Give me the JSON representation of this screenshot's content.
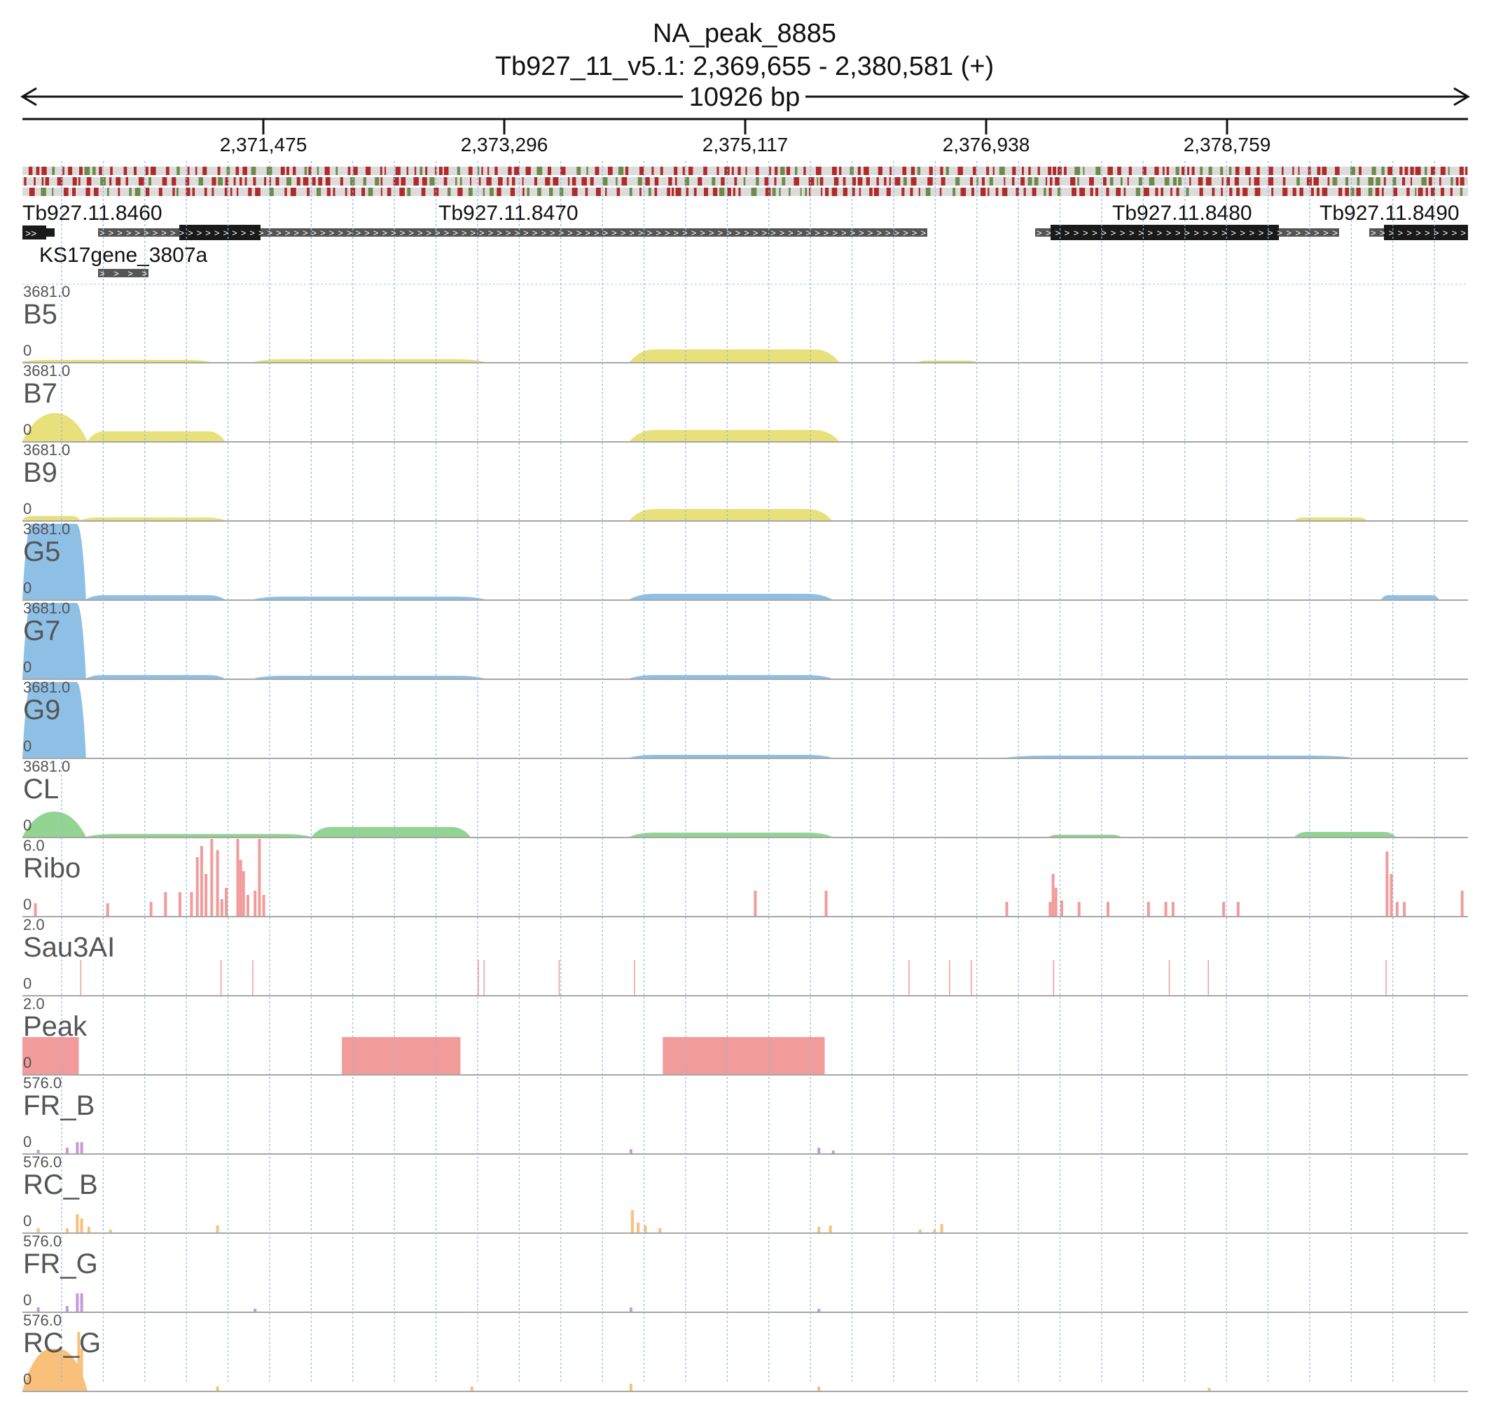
{
  "header": {
    "title": "NA_peak_8885",
    "locus": "Tb927_11_v5.1: 2,369,655 - 2,380,581 (+)",
    "span": "10926 bp"
  },
  "ruler": {
    "ticks": [
      "2,371,475",
      "2,373,296",
      "2,375,117",
      "2,376,938",
      "2,378,759"
    ]
  },
  "colors": {
    "yellow": "#e8e07a",
    "blue": "#8ec0e6",
    "green": "#93d493",
    "red": "#f29b9b",
    "purple": "#c59ad8",
    "orange": "#f8c07a",
    "grid": "#9cc4ea"
  },
  "genes": [
    {
      "label": "Tb927.11.8460"
    },
    {
      "label": "Tb927.11.8470"
    },
    {
      "label": "Tb927.11.8480"
    },
    {
      "label": "Tb927.11.8490"
    },
    {
      "label": "KS17gene_3807a"
    }
  ],
  "tracks": [
    {
      "name": "B5",
      "max": "3681.0",
      "zero": "0",
      "color": "yellow"
    },
    {
      "name": "B7",
      "max": "3681.0",
      "zero": "0",
      "color": "yellow"
    },
    {
      "name": "B9",
      "max": "3681.0",
      "zero": "0",
      "color": "yellow"
    },
    {
      "name": "G5",
      "max": "3681.0",
      "zero": "0",
      "color": "blue"
    },
    {
      "name": "G7",
      "max": "3681.0",
      "zero": "0",
      "color": "blue"
    },
    {
      "name": "G9",
      "max": "3681.0",
      "zero": "0",
      "color": "blue"
    },
    {
      "name": "CL",
      "max": "3681.0",
      "zero": "0",
      "color": "green"
    },
    {
      "name": "Ribo",
      "max": "6.0",
      "zero": "0",
      "color": "red"
    },
    {
      "name": "Sau3AI",
      "max": "2.0",
      "zero": "0",
      "color": "red"
    },
    {
      "name": "Peak",
      "max": "2.0",
      "zero": "0",
      "color": "red"
    },
    {
      "name": "FR_B",
      "max": "576.0",
      "zero": "0",
      "color": "purple"
    },
    {
      "name": "RC_B",
      "max": "576.0",
      "zero": "0",
      "color": "orange"
    },
    {
      "name": "FR_G",
      "max": "576.0",
      "zero": "0",
      "color": "purple"
    },
    {
      "name": "RC_G",
      "max": "576.0",
      "zero": "0",
      "color": "orange"
    }
  ]
}
